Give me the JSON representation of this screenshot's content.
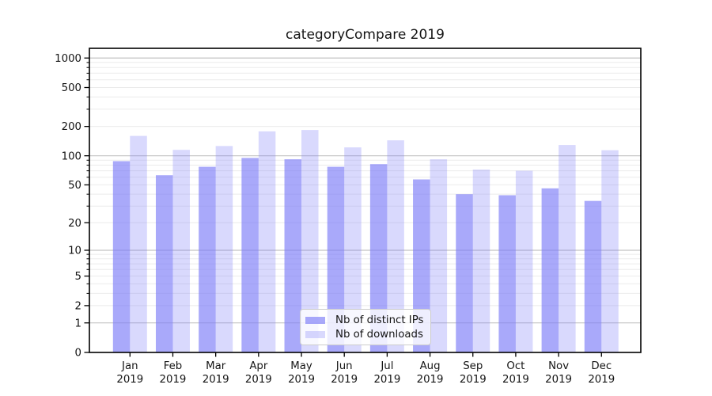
{
  "title": "categoryCompare 2019",
  "chart_data": {
    "type": "bar",
    "title": "categoryCompare 2019",
    "categories": [
      "Jan 2019",
      "Feb 2019",
      "Mar 2019",
      "Apr 2019",
      "May 2019",
      "Jun 2019",
      "Jul 2019",
      "Aug 2019",
      "Sep 2019",
      "Oct 2019",
      "Nov 2019",
      "Dec 2019"
    ],
    "series": [
      {
        "name": "Nb of distinct IPs",
        "values": [
          88,
          63,
          77,
          95,
          92,
          77,
          82,
          57,
          40,
          39,
          46,
          34
        ],
        "color": "rgba(124,124,248,0.66)"
      },
      {
        "name": "Nb of downloads",
        "values": [
          160,
          115,
          126,
          178,
          184,
          122,
          144,
          92,
          72,
          70,
          129,
          114
        ],
        "color": "rgba(124,124,248,0.29)"
      }
    ],
    "xlabel": "",
    "ylabel": "",
    "yscale": "log1p",
    "yticks": [
      0,
      1,
      2,
      5,
      10,
      20,
      50,
      100,
      200,
      500,
      1000
    ],
    "ylim": [
      0,
      1256
    ],
    "grid": "both",
    "legend_position": "lower center"
  },
  "colors": {
    "grid_major": "#c3c3c3",
    "grid_minor": "#ebebeb",
    "axis": "#000000",
    "text": "#151515",
    "legend_border": "#cccccc",
    "legend_bg": "rgba(255,255,255,0.8)"
  }
}
